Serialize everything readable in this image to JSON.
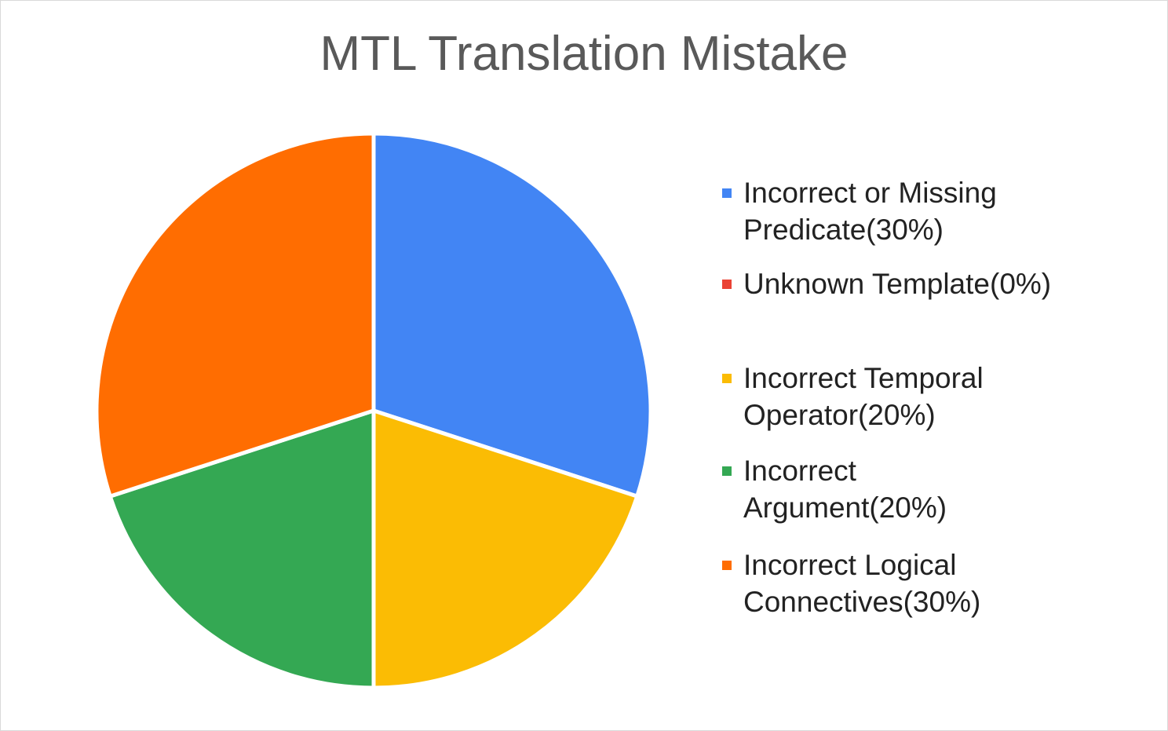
{
  "chart_data": {
    "type": "pie",
    "title": "MTL Translation Mistake",
    "legend_position": "right",
    "slices": [
      {
        "label": "Incorrect or Missing\nPredicate(30%)",
        "value": 30,
        "color": "#4285f4"
      },
      {
        "label": "Unknown Template(0%)",
        "value": 0,
        "color": "#ea4335"
      },
      {
        "label": "Incorrect Temporal\nOperator(20%)",
        "value": 20,
        "color": "#fbbc04"
      },
      {
        "label": "Incorrect\nArgument(20%)",
        "value": 20,
        "color": "#34a853"
      },
      {
        "label": "Incorrect Logical\nConnectives(30%)",
        "value": 30,
        "color": "#ff6d01"
      }
    ]
  }
}
